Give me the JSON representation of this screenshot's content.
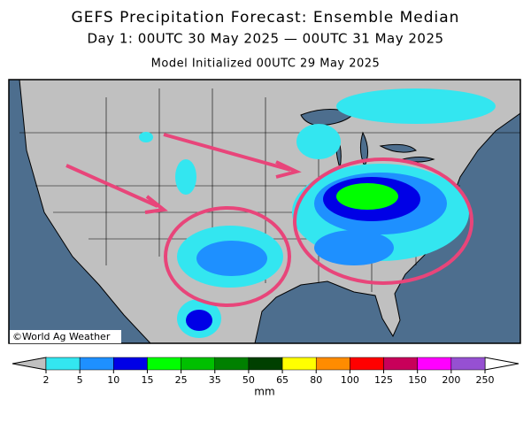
{
  "header": {
    "title": "GEFS Precipitation Forecast: Ensemble Median",
    "period": "Day 1: 00UTC 30 May 2025 — 00UTC 31 May 2025",
    "initialized": "Model Initialized 00UTC 29 May 2025"
  },
  "map": {
    "credit": "©World Ag Weather"
  },
  "legend": {
    "levels": [
      2,
      5,
      10,
      15,
      25,
      35,
      50,
      65,
      80,
      100,
      125,
      150,
      200,
      250
    ],
    "colors": [
      "#33e6f0",
      "#1e90ff",
      "#0000e6",
      "#00ff00",
      "#00c000",
      "#008000",
      "#004000",
      "#ffff00",
      "#ff8c00",
      "#ff0000",
      "#c8005a",
      "#ff00ff",
      "#9650d2"
    ],
    "below_color": "#c0c0c0",
    "above_color": "#ffffff",
    "unit": "mm"
  }
}
